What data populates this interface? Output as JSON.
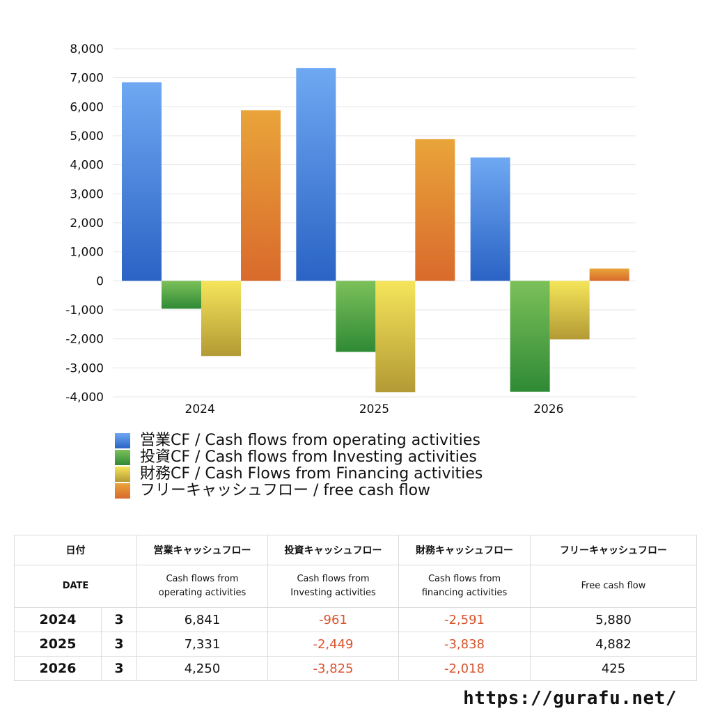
{
  "chart_data": {
    "type": "bar",
    "categories": [
      "2024",
      "2025",
      "2026"
    ],
    "series": [
      {
        "name": "営業CF / Cash flows from operating activities",
        "values": [
          6841,
          7331,
          4250
        ],
        "color_top": "#6fa8f2",
        "color_bottom": "#2a63c4"
      },
      {
        "name": "投資CF / Cash flows from Investing activities",
        "values": [
          -961,
          -2449,
          -3825
        ],
        "color_top": "#7cc05a",
        "color_bottom": "#2f8a35"
      },
      {
        "name": "財務CF / Cash Flows from Financing activities",
        "values": [
          -2591,
          -3838,
          -2018
        ],
        "color_top": "#f5e55a",
        "color_bottom": "#b39a35"
      },
      {
        "name": "フリーキャッシュフロー / free cash flow",
        "values": [
          5880,
          4882,
          425
        ],
        "color_top": "#e9a43a",
        "color_bottom": "#d96a2c"
      }
    ],
    "ylim": [
      -4000,
      8000
    ],
    "yticks": [
      8000,
      7000,
      6000,
      5000,
      4000,
      3000,
      2000,
      1000,
      0,
      -1000,
      -2000,
      -3000,
      -4000
    ],
    "ytick_labels": [
      "8,000",
      "7,000",
      "6,000",
      "5,000",
      "4,000",
      "3,000",
      "2,000",
      "1,000",
      "0",
      "-1,000",
      "-2,000",
      "-3,000",
      "-4,000"
    ],
    "grid": true,
    "legend_position": "bottom"
  },
  "table": {
    "header_row1": [
      "日付",
      "営業キャッシュフロー",
      "投資キャッシュフロー",
      "財務キャッシュフロー",
      "フリーキャッシュフロー"
    ],
    "header_row2": {
      "date": "DATE",
      "operating_1": "Cash flows from",
      "operating_2": "operating activities",
      "investing_1": "Cash flows from",
      "investing_2": "Investing activities",
      "financing_1": "Cash flows from",
      "financing_2": "financing activities",
      "free": "Free cash flow"
    },
    "rows": [
      {
        "year": "2024",
        "month": "3",
        "operating": "6,841",
        "investing": "-961",
        "financing": "-2,591",
        "free": "5,880"
      },
      {
        "year": "2025",
        "month": "3",
        "operating": "7,331",
        "investing": "-2,449",
        "financing": "-3,838",
        "free": "4,882"
      },
      {
        "year": "2026",
        "month": "3",
        "operating": "4,250",
        "investing": "-3,825",
        "financing": "-2,018",
        "free": "425"
      }
    ]
  },
  "footer": {
    "url": "https://gurafu.net/"
  }
}
